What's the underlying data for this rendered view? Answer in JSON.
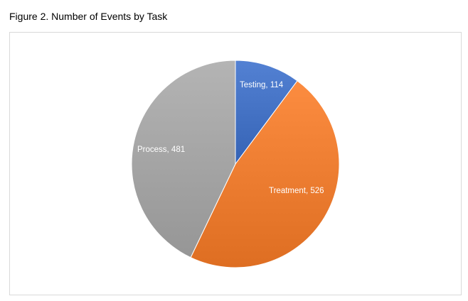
{
  "figure": {
    "title": "Figure 2. Number of Events by Task"
  },
  "chart_data": {
    "type": "pie",
    "title": "",
    "start_angle_deg": 0,
    "direction": "clockwise",
    "legend": "none",
    "slices": [
      {
        "label": "Testing",
        "value": 114,
        "color": "#4472c4",
        "display": "Testing, 114"
      },
      {
        "label": "Treatment",
        "value": 526,
        "color": "#ed7d31",
        "display": "Treatment, 526"
      },
      {
        "label": "Process",
        "value": 481,
        "color": "#a5a5a5",
        "display": "Process, 481"
      }
    ]
  }
}
